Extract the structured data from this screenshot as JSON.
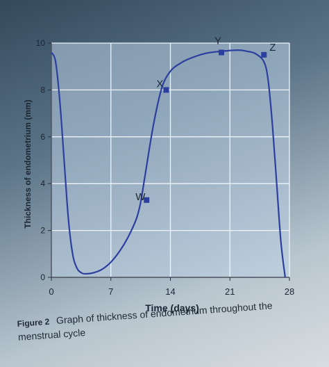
{
  "chart_data": {
    "type": "line",
    "title": "",
    "xlabel": "Time (days)",
    "ylabel": "Thickness of endometrium (mm)",
    "xlim": [
      0,
      28
    ],
    "ylim": [
      0,
      10
    ],
    "x_ticks": [
      "0",
      "7",
      "14",
      "21",
      "28"
    ],
    "y_ticks": [
      "0",
      "2",
      "4",
      "6",
      "8",
      "10"
    ],
    "grid": true,
    "series": [
      {
        "x": [
          0,
          0.5,
          1,
          1.5,
          2,
          2.5,
          3,
          3.5,
          4,
          5,
          6,
          7,
          8,
          9,
          10,
          10.5,
          11,
          12,
          13,
          14,
          15,
          16,
          18,
          20,
          22,
          23,
          24,
          25,
          25.5,
          26,
          26.5,
          27,
          27.5
        ],
        "y": [
          9.6,
          9.2,
          7.5,
          5.0,
          2.5,
          1.0,
          0.4,
          0.2,
          0.15,
          0.2,
          0.35,
          0.65,
          1.1,
          1.7,
          2.5,
          3.2,
          4.3,
          6.5,
          8.1,
          8.8,
          9.1,
          9.3,
          9.55,
          9.65,
          9.7,
          9.65,
          9.55,
          9.2,
          8.4,
          6.5,
          4.0,
          1.5,
          0.0
        ],
        "color": "#2c3f9e"
      }
    ],
    "points": [
      {
        "label": "W",
        "x": 11.2,
        "y": 3.3
      },
      {
        "label": "X",
        "x": 13.5,
        "y": 8.0
      },
      {
        "label": "Y",
        "x": 20.0,
        "y": 9.6
      },
      {
        "label": "Z",
        "x": 25.0,
        "y": 9.5
      }
    ],
    "caption_number": "Figure 2",
    "caption_text": "Graph of thickness of endometrium throughout the menstrual cycle"
  }
}
